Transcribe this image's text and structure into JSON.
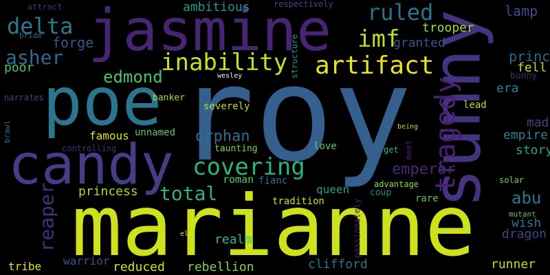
{
  "words": [
    {
      "text": "roy",
      "color": "#35608d"
    },
    {
      "text": "marianne",
      "color": "#cde11d"
    },
    {
      "text": "jasmine",
      "color": "#482475"
    },
    {
      "text": "sunny",
      "color": "#46337f"
    },
    {
      "text": "poe",
      "color": "#2b758e"
    },
    {
      "text": "candy",
      "color": "#433e85"
    },
    {
      "text": "tragedy",
      "color": "#482173"
    },
    {
      "text": "artifact",
      "color": "#e7e419"
    },
    {
      "text": "inability",
      "color": "#c8e020"
    },
    {
      "text": "covering",
      "color": "#2db27d"
    },
    {
      "text": "delta",
      "color": "#297b8e"
    },
    {
      "text": "ruled",
      "color": "#2c728e"
    },
    {
      "text": "imf",
      "color": "#bddf26"
    },
    {
      "text": "asher",
      "color": "#306a8e"
    },
    {
      "text": "total",
      "color": "#2eb37c"
    },
    {
      "text": "edmond",
      "color": "#4ac16d"
    },
    {
      "text": "reaper",
      "color": "#472f7d"
    },
    {
      "text": "abu",
      "color": "#2a788e"
    },
    {
      "text": "orphan",
      "color": "#2e6f8e"
    },
    {
      "text": "emperor",
      "color": "#482677"
    },
    {
      "text": "forge",
      "color": "#38588c"
    },
    {
      "text": "prince",
      "color": "#31688e"
    },
    {
      "text": "princess",
      "color": "#a5db36"
    },
    {
      "text": "lamp",
      "color": "#3e4a89"
    },
    {
      "text": "ambitious",
      "color": "#1f988b"
    },
    {
      "text": "trooper",
      "color": "#a0da39"
    },
    {
      "text": "granted",
      "color": "#3b528b"
    },
    {
      "text": "rebellion",
      "color": "#7fd34e"
    },
    {
      "text": "clifford",
      "color": "#2c738e"
    },
    {
      "text": "poor",
      "color": "#4cc26c"
    },
    {
      "text": "fell",
      "color": "#bade28"
    },
    {
      "text": "era",
      "color": "#26828e"
    },
    {
      "text": "mad",
      "color": "#404688"
    },
    {
      "text": "empire",
      "color": "#25858e"
    },
    {
      "text": "story",
      "color": "#22a785"
    },
    {
      "text": "dragon",
      "color": "#414487"
    },
    {
      "text": "wish",
      "color": "#2c738e"
    },
    {
      "text": "famous",
      "color": "#dde318"
    },
    {
      "text": "unnamed",
      "color": "#62cb5f"
    },
    {
      "text": "severely",
      "color": "#b5de2b"
    },
    {
      "text": "banker",
      "color": "#a8db34"
    },
    {
      "text": "roman",
      "color": "#56c667"
    },
    {
      "text": "realm",
      "color": "#3dbc74"
    },
    {
      "text": "queen",
      "color": "#1fa088"
    },
    {
      "text": "tradition",
      "color": "#d0e11c"
    },
    {
      "text": "reduced",
      "color": "#d2e21b"
    },
    {
      "text": "runner",
      "color": "#b8de29"
    },
    {
      "text": "warrior",
      "color": "#3b528b"
    },
    {
      "text": "tribe",
      "color": "#e5e419"
    },
    {
      "text": "love",
      "color": "#5ec962"
    },
    {
      "text": "taunting",
      "color": "#84d44b"
    },
    {
      "text": "fianc",
      "color": "#2e6e8e"
    },
    {
      "text": "rare",
      "color": "#54c568"
    },
    {
      "text": "coup",
      "color": "#24878e"
    },
    {
      "text": "advantage",
      "color": "#95d840"
    },
    {
      "text": "lead",
      "color": "#b8de29"
    },
    {
      "text": "bunny",
      "color": "#482878"
    },
    {
      "text": "attract",
      "color": "#472d7b"
    },
    {
      "text": "respectively",
      "color": "#3e4a89"
    },
    {
      "text": "controlling",
      "color": "#472f7d"
    },
    {
      "text": "narrates",
      "color": "#3f4889"
    },
    {
      "text": "passionately",
      "color": "#481f70"
    },
    {
      "text": "structure",
      "color": "#21918c"
    },
    {
      "text": "solar",
      "color": "#7ad151"
    },
    {
      "text": "bride",
      "color": "#31688e"
    },
    {
      "text": "brawl",
      "color": "#2c728e"
    },
    {
      "text": "get",
      "color": "#32b67a"
    },
    {
      "text": "meet",
      "color": "#482173"
    },
    {
      "text": "mutant",
      "color": "#5ec962"
    },
    {
      "text": "wesley",
      "color": "#f1f1f1"
    },
    {
      "text": "being",
      "color": "#b5de2b"
    },
    {
      "text": "eli",
      "color": "#dce318"
    }
  ]
}
